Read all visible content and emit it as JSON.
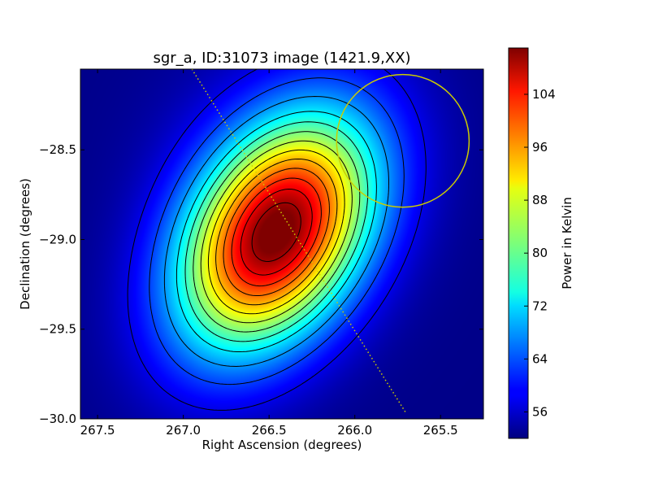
{
  "chart_data": {
    "type": "heatmap",
    "title": "sgr_a, ID:31073 image (1421.9,XX)",
    "xlabel": "Right Ascension (degrees)",
    "ylabel": "Declination (degrees)",
    "colorbar_label": "Power in Kelvin",
    "colormap": "jet",
    "xlim": [
      267.6,
      265.25
    ],
    "ylim": [
      -30.0,
      -28.05
    ],
    "x_ticks": [
      267.5,
      267.0,
      266.5,
      266.0,
      265.5
    ],
    "x_tick_labels": [
      "267.5",
      "267.0",
      "266.5",
      "266.0",
      "265.5"
    ],
    "y_ticks": [
      -28.5,
      -29.0,
      -29.5,
      -30.0
    ],
    "y_tick_labels": [
      "−28.5",
      "−29.0",
      "−29.5",
      "−30.0"
    ],
    "color_range": [
      52,
      111
    ],
    "colorbar_ticks": [
      56,
      64,
      72,
      80,
      88,
      96,
      104
    ],
    "colorbar_tick_labels": [
      "56",
      "64",
      "72",
      "80",
      "88",
      "96",
      "104"
    ],
    "peak": {
      "ra": 266.46,
      "dec": -28.97,
      "value": 111
    },
    "contour_levels": [
      58,
      63,
      68,
      73,
      77,
      81,
      85,
      89,
      93,
      97,
      101,
      105,
      109
    ],
    "overlays": {
      "circle": {
        "ra_center": 265.72,
        "dec_center": -28.45,
        "radius_dec": 0.37,
        "color": "#cccc00"
      },
      "dotted_line": {
        "ra": [
          266.95,
          265.7
        ],
        "dec": [
          -28.05,
          -29.97
        ],
        "color": "#cccc00"
      }
    },
    "grid": false
  }
}
